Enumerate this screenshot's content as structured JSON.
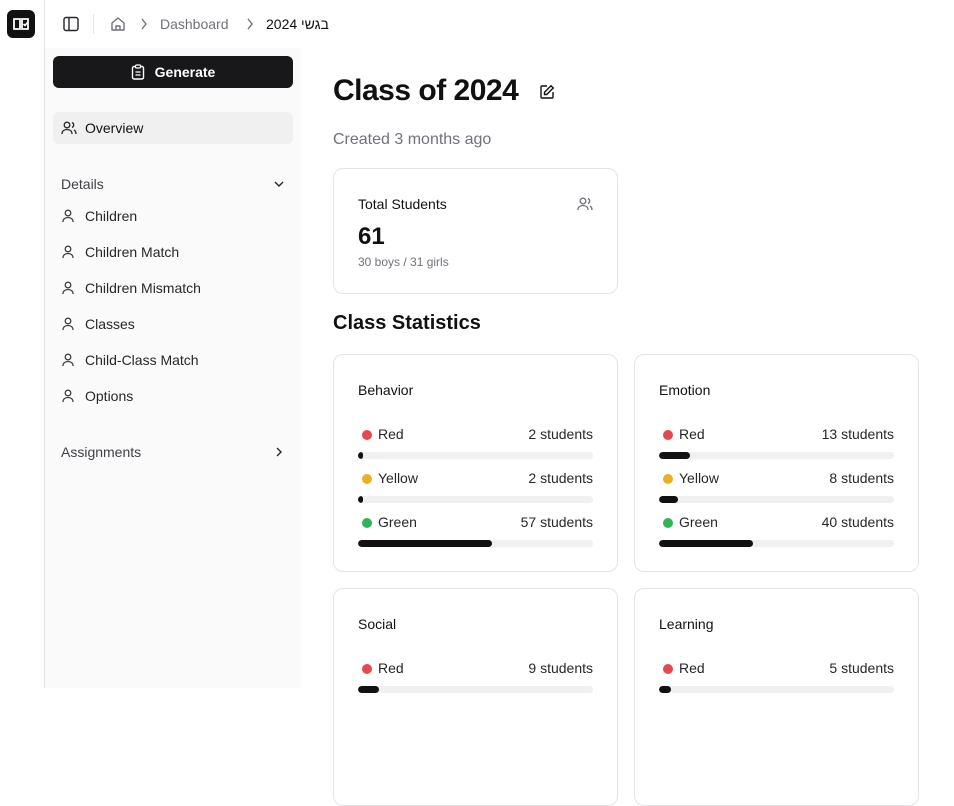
{
  "breadcrumb": [
    "Dashboard",
    "2024 ישגב"
  ],
  "sidebar": {
    "generate": "Generate",
    "overview": "Overview",
    "details": {
      "title": "Details",
      "items": [
        "Children",
        "Children Match",
        "Children Mismatch",
        "Classes",
        "Child-Class Match",
        "Options"
      ]
    },
    "assignments": "Assignments"
  },
  "page": {
    "title": "Class of 2024",
    "subtitle": "Created 3 months ago"
  },
  "total_card": {
    "title": "Total Students",
    "value": 61,
    "detail": "30 boys / 31 girls"
  },
  "stats": {
    "title": "Class Statistics",
    "cards": [
      {
        "title": "Behavior",
        "rows": [
          {
            "name": "Red",
            "color": "#e5484d",
            "count": 2,
            "label": "2 students"
          },
          {
            "name": "Yellow",
            "color": "#e8b125",
            "count": 2,
            "label": "2 students"
          },
          {
            "name": "Green",
            "color": "#2fb457",
            "count": 57,
            "label": "57 students"
          }
        ]
      },
      {
        "title": "Emotion",
        "rows": [
          {
            "name": "Red",
            "color": "#e5484d",
            "count": 13,
            "label": "13 students"
          },
          {
            "name": "Yellow",
            "color": "#e8b125",
            "count": 8,
            "label": "8 students"
          },
          {
            "name": "Green",
            "color": "#2fb457",
            "count": 40,
            "label": "40 students"
          }
        ]
      },
      {
        "title": "Social",
        "rows": [
          {
            "name": "Red",
            "color": "#e5484d",
            "count": 9,
            "label": "9 students"
          }
        ]
      },
      {
        "title": "Learning",
        "rows": [
          {
            "name": "Red",
            "color": "#e5484d",
            "count": 5,
            "label": "5 students"
          }
        ]
      }
    ]
  }
}
